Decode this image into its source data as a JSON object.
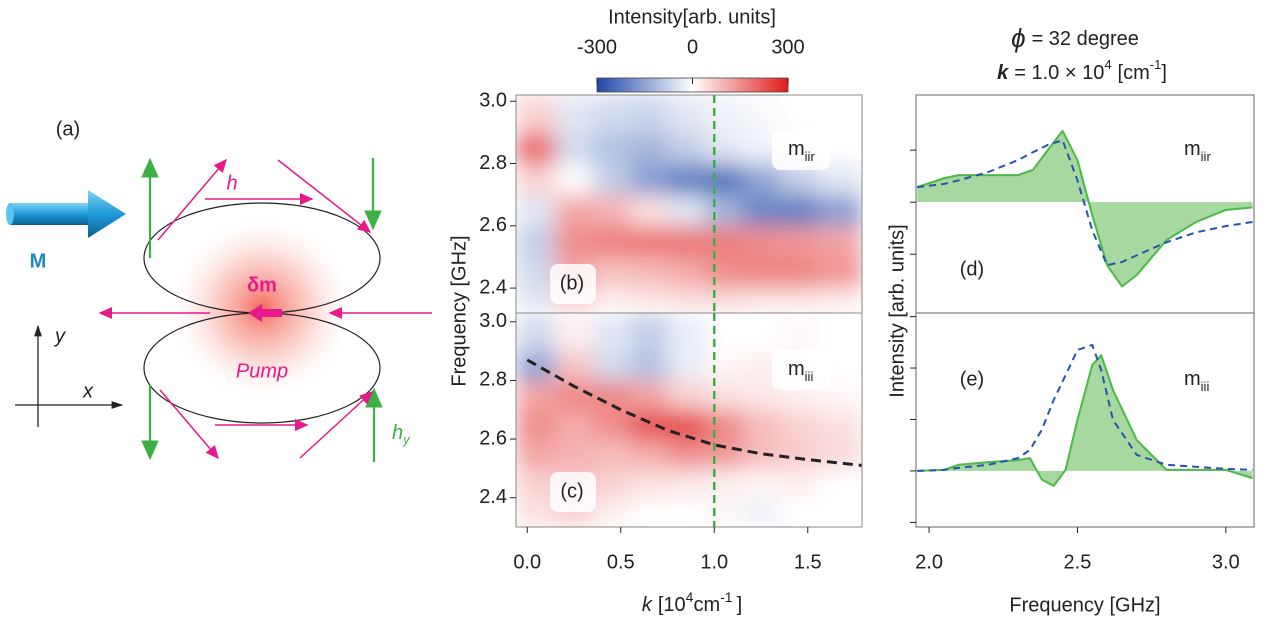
{
  "figure": {
    "colorbar_title": "Intensity[arb. units]",
    "heat_y_label": "Frequency [GHz]",
    "heat_x_label": [
      "k",
      "[10",
      "4",
      "cm",
      "-1",
      "]"
    ],
    "right_y_label": "Intensity [arb. units]",
    "right_title_phi": [
      "ϕ",
      "= 32 degree"
    ],
    "right_title_k": [
      "k",
      "= 1.0 × 10",
      "4",
      "[cm",
      "-1",
      "]"
    ],
    "panel_a": {
      "label": "(a)",
      "magnetization": "M",
      "field": "h",
      "dm": "δm",
      "pump": "Pump",
      "y_axis": "y",
      "x_axis": "x",
      "hy": [
        "h",
        "y"
      ]
    }
  },
  "chart_data": [
    {
      "type": "heatmap",
      "panel_label": "(b)",
      "mode_label": [
        "m",
        "iir"
      ],
      "xlim": [
        -0.06,
        1.79
      ],
      "ylim": [
        2.32,
        3.02
      ],
      "yticks": [
        2.4,
        2.6,
        2.8,
        {
          "value": 3,
          "label": "3.0"
        }
      ],
      "xbins": [
        -0.06,
        0.15,
        0.35,
        0.55,
        0.75,
        0.95,
        1.15,
        1.35,
        1.55,
        1.79
      ],
      "ybins": [
        2.32,
        2.4,
        2.5,
        2.6,
        2.7,
        2.8,
        2.9,
        3.02
      ],
      "z": [
        [
          -40,
          60,
          20,
          30,
          40,
          40,
          30,
          30,
          20
        ],
        [
          -60,
          120,
          80,
          90,
          110,
          150,
          160,
          160,
          140
        ],
        [
          -80,
          150,
          170,
          180,
          180,
          170,
          150,
          140,
          120
        ],
        [
          -40,
          120,
          100,
          40,
          -40,
          -120,
          -200,
          -210,
          -160
        ],
        [
          60,
          0,
          -80,
          -160,
          -210,
          -230,
          -150,
          -80,
          -40
        ],
        [
          200,
          -60,
          -100,
          -120,
          -80,
          -40,
          -20,
          -10,
          0
        ],
        [
          60,
          -40,
          -60,
          -70,
          -40,
          -20,
          -10,
          0,
          0
        ]
      ],
      "zlim": [
        -300,
        300
      ],
      "zticks": [
        -300,
        0,
        300
      ],
      "colormap": [
        "#1f48a8",
        "#ffffff",
        "#e01b1b"
      ],
      "vline": {
        "x": 1,
        "color": "#3cb043"
      }
    },
    {
      "type": "heatmap",
      "panel_label": "(c)",
      "mode_label": [
        "m",
        "iii"
      ],
      "xlim": [
        -0.06,
        1.79
      ],
      "ylim": [
        2.3,
        3.03
      ],
      "yticks": [
        2.4,
        2.6,
        2.8,
        {
          "value": 3,
          "label": "3.0"
        }
      ],
      "xticks": [
        {
          "value": 0,
          "label": "0.0"
        },
        0.5,
        {
          "value": 1,
          "label": "1.0"
        },
        1.5
      ],
      "xbins": [
        -0.06,
        0.15,
        0.35,
        0.55,
        0.75,
        0.95,
        1.15,
        1.35,
        1.55,
        1.79
      ],
      "ybins": [
        2.3,
        2.4,
        2.5,
        2.6,
        2.7,
        2.8,
        2.9,
        3.03
      ],
      "z": [
        [
          40,
          60,
          20,
          0,
          0,
          10,
          -20,
          0,
          0
        ],
        [
          60,
          80,
          60,
          40,
          30,
          20,
          10,
          20,
          0
        ],
        [
          120,
          100,
          90,
          110,
          150,
          140,
          90,
          70,
          50
        ],
        [
          150,
          110,
          150,
          230,
          240,
          160,
          90,
          60,
          40
        ],
        [
          120,
          160,
          160,
          120,
          60,
          40,
          30,
          20,
          10
        ],
        [
          -150,
          80,
          -60,
          -100,
          -30,
          10,
          20,
          10,
          0
        ],
        [
          -60,
          20,
          -40,
          -80,
          -30,
          0,
          0,
          10,
          0
        ]
      ],
      "zlim": [
        -300,
        300
      ],
      "colormap": [
        "#1f48a8",
        "#ffffff",
        "#e01b1b"
      ],
      "vline": {
        "x": 1,
        "color": "#3cb043"
      },
      "curve": {
        "x": [
          0,
          0.25,
          0.5,
          0.75,
          1,
          1.25,
          1.5,
          1.79
        ],
        "y": [
          2.87,
          2.78,
          2.7,
          2.63,
          2.58,
          2.55,
          2.53,
          2.51
        ],
        "color": "#222222"
      }
    },
    {
      "type": "line",
      "panel_label": "(d)",
      "mode_label": [
        "m",
        "iir"
      ],
      "xlim": [
        1.956,
        3.095
      ],
      "ylim": [
        -2.13,
        2.06
      ],
      "yticks": [
        -1,
        0,
        1
      ],
      "x": [
        1.96,
        2.05,
        2.1,
        2.2,
        2.3,
        2.35,
        2.4,
        2.45,
        2.5,
        2.55,
        2.6,
        2.65,
        2.7,
        2.8,
        2.9,
        3.0,
        3.09
      ],
      "series": [
        {
          "color": "#4cb848",
          "fill": "#a6d89f",
          "values": [
            0.29,
            0.46,
            0.52,
            0.52,
            0.52,
            0.62,
            1.0,
            1.37,
            0.81,
            -0.25,
            -1.21,
            -1.62,
            -1.4,
            -0.73,
            -0.38,
            -0.15,
            -0.1
          ]
        },
        {
          "color": "#2553b0",
          "dashed": true,
          "values": [
            0.29,
            0.35,
            0.42,
            0.58,
            0.81,
            0.96,
            1.1,
            1.19,
            0.42,
            -0.54,
            -1.21,
            -1.15,
            -1.02,
            -0.77,
            -0.58,
            -0.46,
            -0.38
          ]
        }
      ]
    },
    {
      "type": "line",
      "panel_label": "(e)",
      "mode_label": [
        "m",
        "iii"
      ],
      "xlim": [
        1.956,
        3.095
      ],
      "ylim": [
        -1.09,
        3.07
      ],
      "yticks": [
        -1,
        0,
        1,
        2,
        3
      ],
      "xticks": [
        {
          "value": 2,
          "label": "2.0"
        },
        2.5,
        {
          "value": 3,
          "label": "3.0"
        }
      ],
      "x_label": "Frequency [GHz]",
      "x": [
        1.96,
        2.05,
        2.1,
        2.2,
        2.3,
        2.34,
        2.38,
        2.42,
        2.46,
        2.5,
        2.55,
        2.58,
        2.62,
        2.7,
        2.8,
        2.9,
        3.0,
        3.09
      ],
      "series": [
        {
          "color": "#4cb848",
          "fill": "#a6d89f",
          "values": [
            0,
            0.02,
            0.12,
            0.17,
            0.21,
            0.25,
            -0.17,
            -0.29,
            0.02,
            0.99,
            2.06,
            2.25,
            1.57,
            0.6,
            0.02,
            0.02,
            0.02,
            -0.14
          ]
        },
        {
          "color": "#2553b0",
          "dashed": true,
          "values": [
            0,
            0.02,
            0.06,
            0.12,
            0.25,
            0.41,
            0.8,
            1.38,
            1.86,
            2.35,
            2.45,
            1.96,
            0.99,
            0.31,
            0.12,
            0.08,
            0.04,
            0.02
          ]
        }
      ]
    }
  ]
}
